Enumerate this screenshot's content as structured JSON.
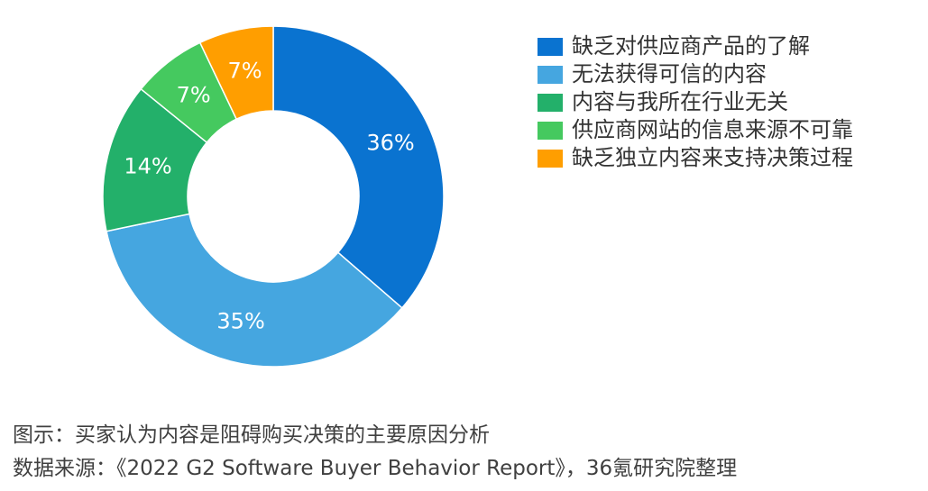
{
  "chart_data": {
    "type": "pie",
    "donut": true,
    "categories": [
      "缺乏对供应商产品的了解",
      "无法获得可信的内容",
      "内容与我所在行业无关",
      "供应商网站的信息来源不可靠",
      "缺乏独立内容来支持决策过程"
    ],
    "values": [
      36,
      35,
      14,
      7,
      7
    ],
    "value_labels": [
      "36%",
      "35%",
      "14%",
      "7%",
      "7%"
    ],
    "colors": [
      "#0A73D0",
      "#45A6E0",
      "#23B06A",
      "#45C95F",
      "#FF9E00"
    ],
    "legend_position": "right",
    "start_angle_deg": 0,
    "direction": "clockwise"
  },
  "caption": {
    "figure": "图示：买家认为内容是阻碍购买决策的主要原因分析",
    "source": "数据来源：《2022 G2 Software Buyer Behavior Report》，36氪研究院整理"
  }
}
